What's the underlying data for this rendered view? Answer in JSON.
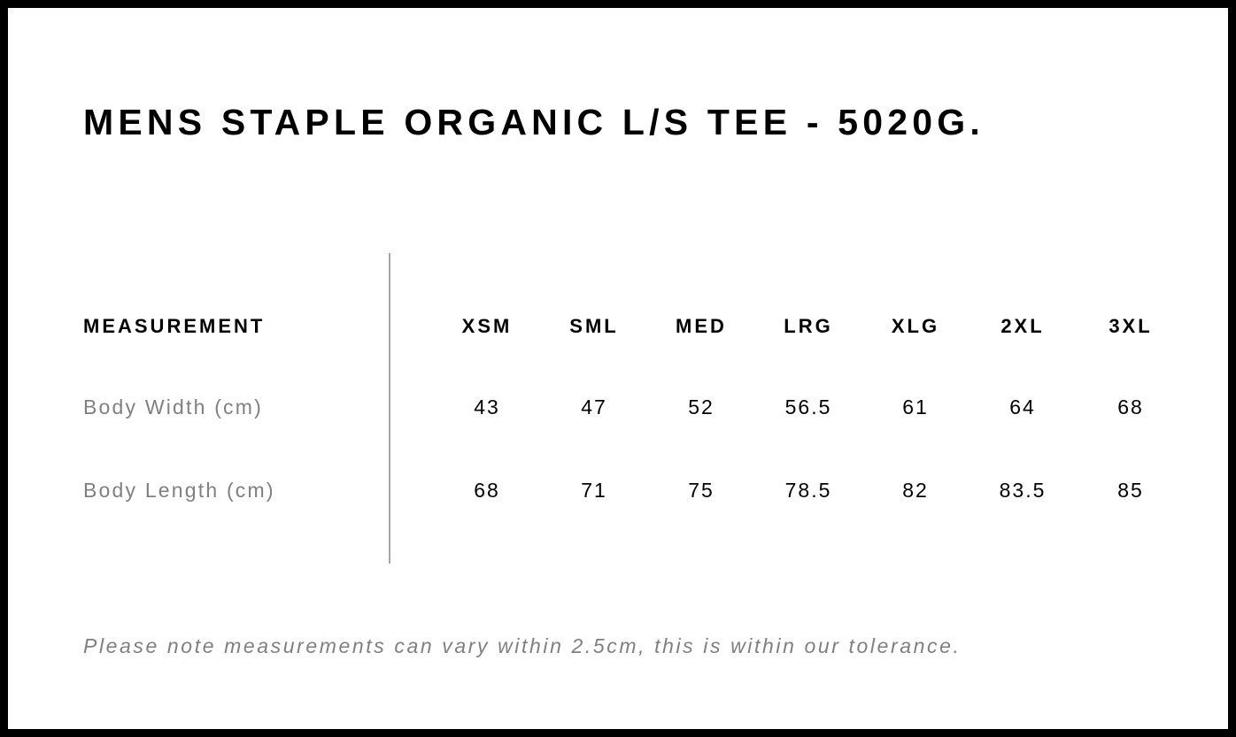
{
  "title": "MENS STAPLE ORGANIC L/S TEE - 5020G.",
  "table": {
    "header_label": "MEASUREMENT",
    "sizes": [
      "XSM",
      "SML",
      "MED",
      "LRG",
      "XLG",
      "2XL",
      "3XL"
    ],
    "rows": [
      {
        "label": "Body Width (cm)",
        "values": [
          "43",
          "47",
          "52",
          "56.5",
          "61",
          "64",
          "68"
        ]
      },
      {
        "label": "Body Length (cm)",
        "values": [
          "68",
          "71",
          "75",
          "78.5",
          "82",
          "83.5",
          "85"
        ]
      }
    ]
  },
  "note": "Please note measurements can vary within 2.5cm, this is within our tolerance."
}
